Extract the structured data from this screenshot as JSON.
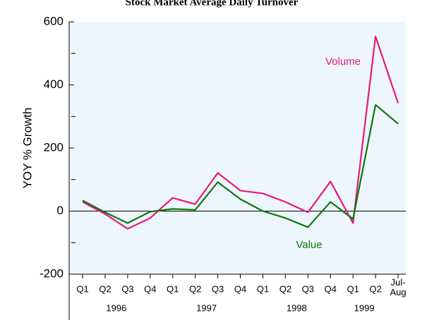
{
  "chart_data": {
    "type": "line",
    "title": "Stock Market Average Daily Turnover",
    "y_label": "YOY % Growth",
    "categories": [
      "Q1",
      "Q2",
      "Q3",
      "Q4",
      "Q1",
      "Q2",
      "Q3",
      "Q4",
      "Q1",
      "Q2",
      "Q3",
      "Q4",
      "Q1",
      "Q2",
      "Jul-Aug"
    ],
    "years": [
      "1996",
      "1997",
      "1998",
      "1999"
    ],
    "series": [
      {
        "name": "Volume",
        "color": "#e8177a",
        "values": [
          29,
          -9,
          -56,
          -22,
          42,
          22,
          121,
          65,
          56,
          29,
          -4,
          94,
          -38,
          554,
          342
        ]
      },
      {
        "name": "Value",
        "color": "#0a7a0a",
        "values": [
          34,
          -4,
          -38,
          -2,
          7,
          4,
          92,
          38,
          0,
          -22,
          -51,
          29,
          -25,
          337,
          277
        ]
      }
    ],
    "ylim": [
      -200,
      600
    ],
    "yticks": [
      -200,
      0,
      200,
      400,
      600
    ],
    "yminorticks": [
      -100,
      100,
      300,
      500
    ]
  }
}
